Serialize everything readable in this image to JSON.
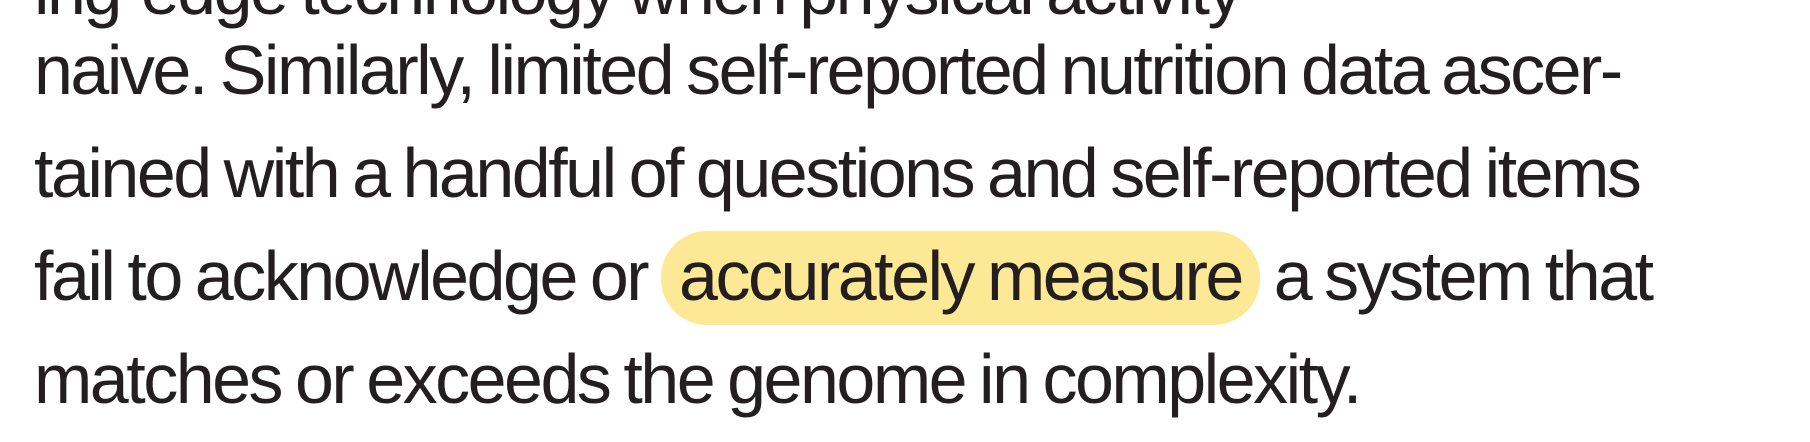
{
  "document": {
    "highlight_color": "#fde995",
    "text_color": "#231f20",
    "line_cut_top": "ing-edge technology when physical activity",
    "line_1": "naive. Similarly, limited self-reported nutrition data ascer-",
    "line_2": "tained with a handful of questions and self-reported items",
    "line_3_before": "fail to acknowledge or ",
    "line_3_highlight": "accurately measure",
    "line_3_after": " a system that",
    "line_4": "matches or exceeds the genome in complexity."
  }
}
